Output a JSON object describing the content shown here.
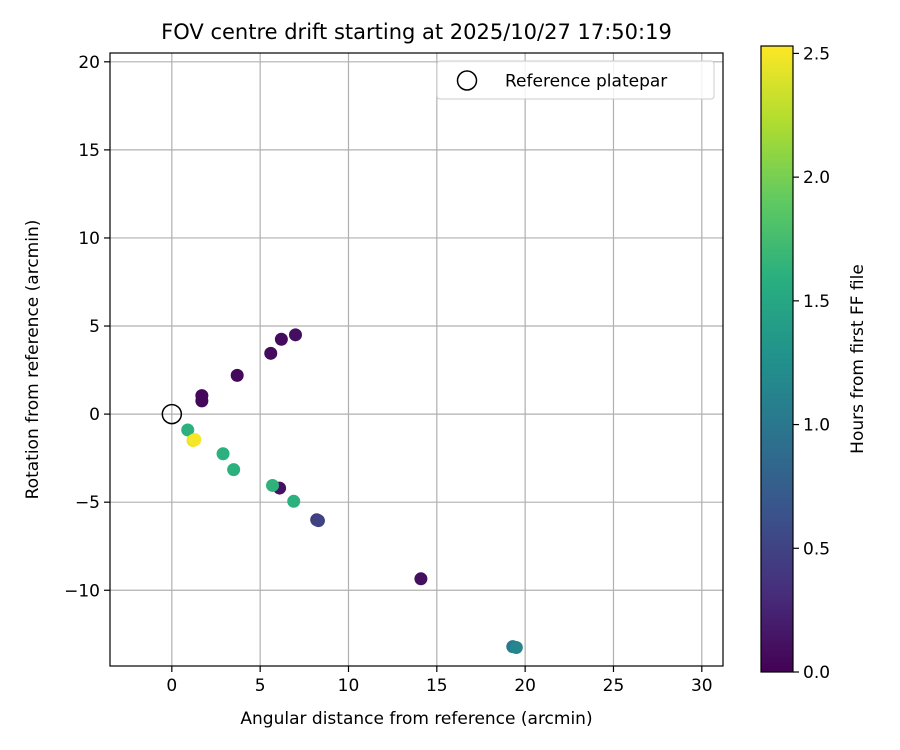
{
  "chart_data": {
    "type": "scatter",
    "title": "FOV centre drift starting at 2025/10/27 17:50:19",
    "xlabel": "Angular distance from reference (arcmin)",
    "ylabel": "Rotation from reference (arcmin)",
    "xlim": [
      -3.5,
      31.2
    ],
    "ylim": [
      -14.3,
      20.5
    ],
    "x_ticks": [
      0,
      5,
      10,
      15,
      20,
      25,
      30
    ],
    "x_tick_labels": [
      "0",
      "5",
      "10",
      "15",
      "20",
      "25",
      "30"
    ],
    "y_ticks": [
      -10,
      -5,
      0,
      5,
      10,
      15,
      20
    ],
    "y_tick_labels": [
      "−10",
      "−5",
      "0",
      "5",
      "10",
      "15",
      "20"
    ],
    "grid": true,
    "legend": {
      "position": "top-right",
      "entries": [
        "Reference platepar"
      ]
    },
    "reference_point": {
      "x": 0,
      "y": 0,
      "label": "Reference platepar"
    },
    "colormap": "viridis",
    "colorbar": {
      "label": "Hours from first FF file",
      "range": [
        0.0,
        2.53
      ],
      "ticks": [
        0.0,
        0.5,
        1.0,
        1.5,
        2.0,
        2.5
      ],
      "tick_labels": [
        "0.0",
        "0.5",
        "1.0",
        "1.5",
        "2.0",
        "2.5"
      ]
    },
    "points": [
      {
        "x": 1.7,
        "y": 1.05,
        "hours": 0.05
      },
      {
        "x": 1.7,
        "y": 0.75,
        "hours": 0.05
      },
      {
        "x": 3.7,
        "y": 2.2,
        "hours": 0.06
      },
      {
        "x": 5.6,
        "y": 3.45,
        "hours": 0.07
      },
      {
        "x": 6.2,
        "y": 4.25,
        "hours": 0.08
      },
      {
        "x": 7.0,
        "y": 4.5,
        "hours": 0.1
      },
      {
        "x": 6.1,
        "y": -4.2,
        "hours": 0.12
      },
      {
        "x": 14.1,
        "y": -9.35,
        "hours": 0.1
      },
      {
        "x": 8.2,
        "y": -6.0,
        "hours": 0.45
      },
      {
        "x": 8.3,
        "y": -6.05,
        "hours": 0.5
      },
      {
        "x": 19.3,
        "y": -13.2,
        "hours": 1.0
      },
      {
        "x": 19.5,
        "y": -13.25,
        "hours": 1.15
      },
      {
        "x": 0.9,
        "y": -0.9,
        "hours": 1.6
      },
      {
        "x": 2.9,
        "y": -2.25,
        "hours": 1.6
      },
      {
        "x": 3.5,
        "y": -3.15,
        "hours": 1.6
      },
      {
        "x": 5.7,
        "y": -4.05,
        "hours": 1.62
      },
      {
        "x": 6.9,
        "y": -4.95,
        "hours": 1.6
      },
      {
        "x": 1.2,
        "y": -1.5,
        "hours": 2.45
      },
      {
        "x": 1.3,
        "y": -1.45,
        "hours": 2.5
      }
    ]
  }
}
